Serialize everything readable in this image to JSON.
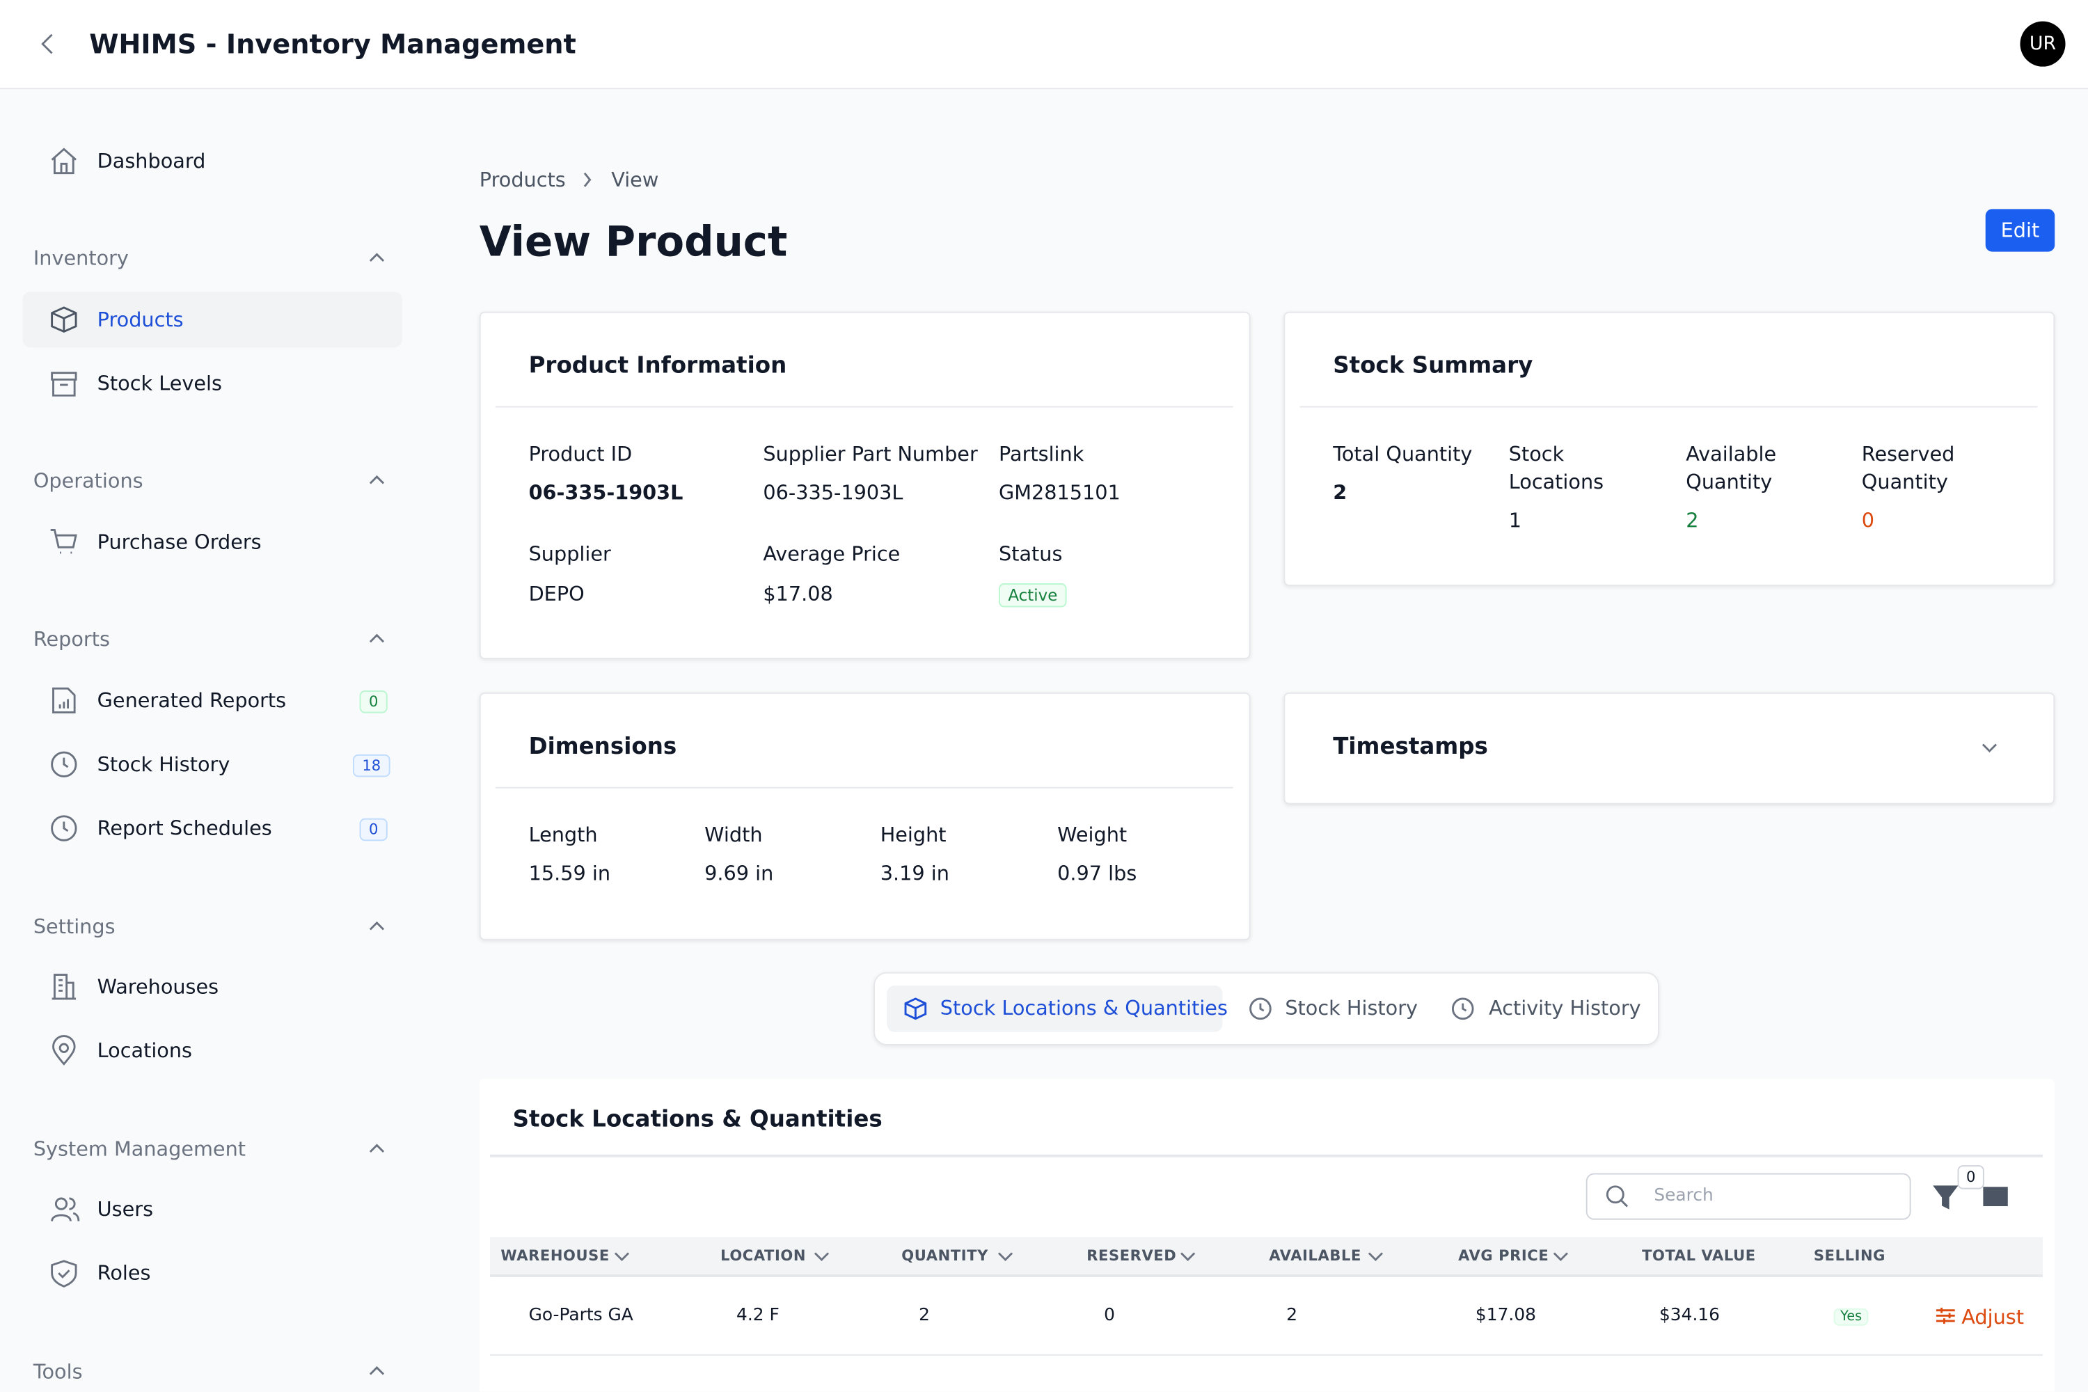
{
  "header": {
    "title": "WHIMS - Inventory Management",
    "avatar": "UR"
  },
  "sidebar": {
    "dashboard": "Dashboard",
    "sections": [
      {
        "title": "Inventory",
        "items": [
          {
            "label": "Products"
          },
          {
            "label": "Stock Levels"
          }
        ]
      },
      {
        "title": "Operations",
        "items": [
          {
            "label": "Purchase Orders"
          }
        ]
      },
      {
        "title": "Reports",
        "items": [
          {
            "label": "Generated Reports",
            "badge": 0
          },
          {
            "label": "Stock History",
            "badge": 18
          },
          {
            "label": "Report Schedules",
            "badge": 0
          }
        ]
      },
      {
        "title": "Settings",
        "items": [
          {
            "label": "Warehouses"
          },
          {
            "label": "Locations"
          }
        ]
      },
      {
        "title": "System Management",
        "items": [
          {
            "label": "Users"
          },
          {
            "label": "Roles"
          }
        ]
      },
      {
        "title": "Tools",
        "items": []
      }
    ]
  },
  "breadcrumb": [
    "Products",
    "View"
  ],
  "page_title": "View Product",
  "edit_button": "Edit",
  "product_info": {
    "title": "Product Information",
    "fields": [
      {
        "label": "Product ID",
        "value": "06-335-1903L"
      },
      {
        "label": "Supplier Part Number",
        "value": "06-335-1903L"
      },
      {
        "label": "Partslink",
        "value": "GM2815101"
      },
      {
        "label": "Supplier",
        "value": "DEPO"
      },
      {
        "label": "Average Price",
        "value": "$17.08"
      },
      {
        "label": "Status",
        "value": "Active"
      }
    ]
  },
  "stock_summary": {
    "title": "Stock Summary",
    "fields": [
      {
        "label": "Total Quantity",
        "value": 2
      },
      {
        "label": "Stock Locations",
        "value": 1
      },
      {
        "label": "Available Quantity",
        "value": 2
      },
      {
        "label": "Reserved Quantity",
        "value": 0
      }
    ]
  },
  "dimensions": {
    "title": "Dimensions",
    "fields": [
      {
        "label": "Length",
        "value": "15.59 in"
      },
      {
        "label": "Width",
        "value": "9.69 in"
      },
      {
        "label": "Height",
        "value": "3.19 in"
      },
      {
        "label": "Weight",
        "value": "0.97 lbs"
      }
    ]
  },
  "timestamps": {
    "title": "Timestamps"
  },
  "tabs": [
    "Stock Locations & Quantities",
    "Stock History",
    "Activity History"
  ],
  "table": {
    "title": "Stock Locations & Quantities",
    "search_placeholder": "Search",
    "filter_count": 0,
    "columns": [
      "WAREHOUSE",
      "LOCATION",
      "QUANTITY",
      "RESERVED",
      "AVAILABLE",
      "AVG PRICE",
      "TOTAL VALUE",
      "SELLING"
    ],
    "rows": [
      [
        "Go-Parts GA",
        "4.2 F",
        "2",
        "0",
        "2",
        "$17.08",
        "$34.16",
        "Yes"
      ]
    ],
    "row_action": "Adjust"
  }
}
